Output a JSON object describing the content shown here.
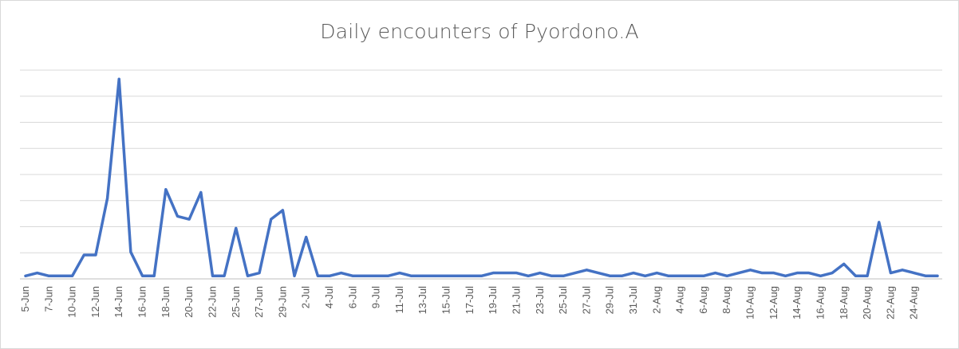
{
  "chart_data": {
    "type": "line",
    "title": "Daily encounters of Pyordono.A",
    "xlabel": "",
    "ylabel": "",
    "grid": true,
    "y_axis_labels_shown": false,
    "x_tick_labels": [
      "5-Jun",
      "7-Jun",
      "10-Jun",
      "12-Jun",
      "14-Jun",
      "16-Jun",
      "18-Jun",
      "20-Jun",
      "22-Jun",
      "25-Jun",
      "27-Jun",
      "29-Jun",
      "2-Jul",
      "4-Jul",
      "6-Jul",
      "9-Jul",
      "11-Jul",
      "13-Jul",
      "15-Jul",
      "17-Jul",
      "19-Jul",
      "21-Jul",
      "23-Jul",
      "25-Jul",
      "27-Jul",
      "29-Jul",
      "31-Jul",
      "2-Aug",
      "4-Aug",
      "6-Aug",
      "8-Aug",
      "10-Aug",
      "12-Aug",
      "14-Aug",
      "16-Aug",
      "18-Aug",
      "20-Aug",
      "22-Aug",
      "24-Aug"
    ],
    "series": [
      {
        "color": "#4472c4",
        "values": [
          1,
          2,
          1,
          1,
          1,
          8,
          8,
          27,
          67,
          9,
          1,
          1,
          30,
          21,
          20,
          29,
          1,
          1,
          17,
          1,
          2,
          20,
          23,
          1,
          14,
          1,
          1,
          2,
          1,
          1,
          1,
          1,
          2,
          1,
          1,
          1,
          1,
          1,
          1,
          1,
          2,
          2,
          2,
          1,
          2,
          1,
          1,
          2,
          3,
          2,
          1,
          1,
          2,
          1,
          2,
          1,
          1,
          1,
          1,
          2,
          1,
          2,
          3,
          2,
          2,
          1,
          2,
          2,
          1,
          2,
          5,
          1,
          1,
          19,
          2,
          3,
          2,
          1,
          1
        ]
      }
    ],
    "ylim": [
      0,
      70
    ],
    "gridlines": 8
  }
}
